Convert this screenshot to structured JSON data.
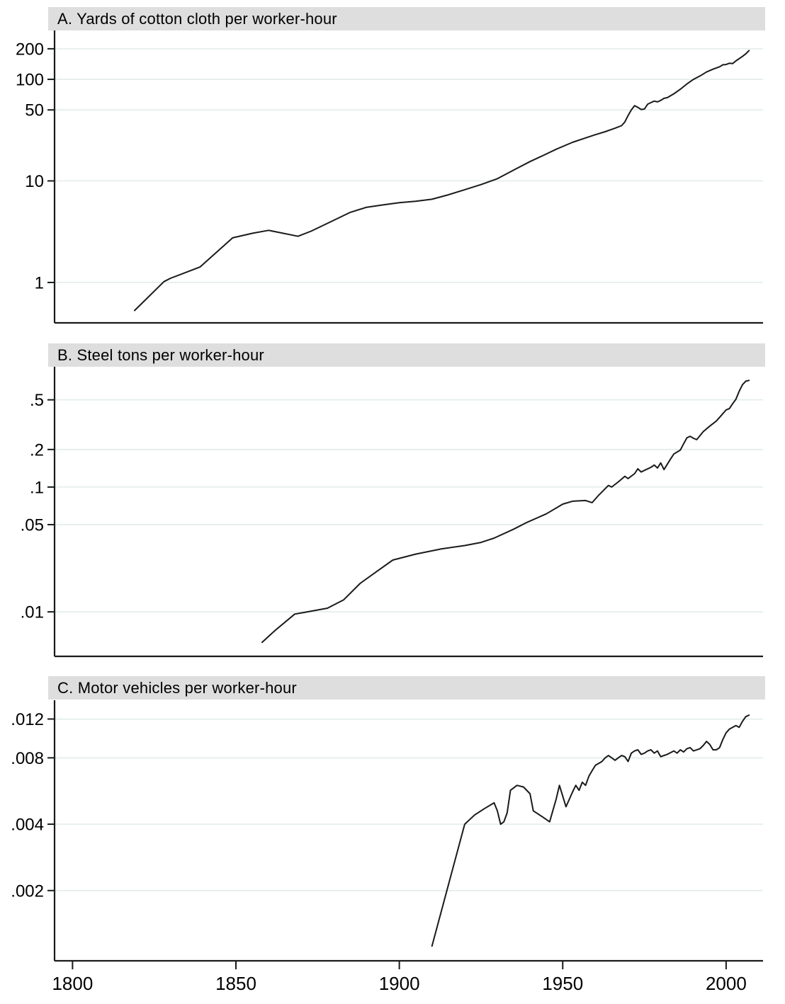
{
  "figure": {
    "type": "three stacked single-series line charts, shared x axis",
    "background": "#ffffff"
  },
  "colors": {
    "line": "#1a1a1a",
    "grid": "#e2ecec",
    "header_bg": "#dedede",
    "axis": "#1a1a1a",
    "text": "#000000"
  },
  "x_axis": {
    "xlim": [
      1794.5,
      2011.3
    ],
    "ticks": [
      {
        "v": 1800,
        "label": "1800"
      },
      {
        "v": 1850,
        "label": "1850"
      },
      {
        "v": 1900,
        "label": "1900"
      },
      {
        "v": 1950,
        "label": "1950"
      },
      {
        "v": 2000,
        "label": "2000"
      }
    ]
  },
  "chart_data": [
    {
      "type": "line",
      "title": "A. Yards of cotton cloth per worker-hour",
      "xlabel": "",
      "ylabel": "",
      "yscale": "log",
      "grid": "horizontal",
      "legend": "none",
      "ylim": [
        0.4,
        303
      ],
      "yticks": [
        {
          "v": 200,
          "label": "200"
        },
        {
          "v": 100,
          "label": "100"
        },
        {
          "v": 50,
          "label": "50"
        },
        {
          "v": 10,
          "label": "10"
        },
        {
          "v": 1,
          "label": "1"
        }
      ],
      "series": [
        [
          1819,
          0.53
        ],
        [
          1828,
          1.02
        ],
        [
          1830,
          1.1
        ],
        [
          1839,
          1.42
        ],
        [
          1849,
          2.75
        ],
        [
          1855,
          3.05
        ],
        [
          1860,
          3.26
        ],
        [
          1869,
          2.85
        ],
        [
          1873,
          3.2
        ],
        [
          1880,
          4.1
        ],
        [
          1885,
          4.9
        ],
        [
          1890,
          5.5
        ],
        [
          1895,
          5.8
        ],
        [
          1900,
          6.1
        ],
        [
          1905,
          6.3
        ],
        [
          1910,
          6.6
        ],
        [
          1915,
          7.3
        ],
        [
          1920,
          8.2
        ],
        [
          1925,
          9.2
        ],
        [
          1930,
          10.5
        ],
        [
          1936,
          13.3
        ],
        [
          1940,
          15.5
        ],
        [
          1944,
          17.8
        ],
        [
          1948,
          20.5
        ],
        [
          1953,
          24.0
        ],
        [
          1957,
          26.5
        ],
        [
          1960,
          28.5
        ],
        [
          1963,
          30.5
        ],
        [
          1966,
          33.0
        ],
        [
          1968,
          35.0
        ],
        [
          1969,
          38.0
        ],
        [
          1970,
          44.0
        ],
        [
          1971,
          50.0
        ],
        [
          1972,
          55.0
        ],
        [
          1973,
          53.0
        ],
        [
          1974,
          50.5
        ],
        [
          1975,
          51.0
        ],
        [
          1976,
          57.0
        ],
        [
          1977,
          59.0
        ],
        [
          1978,
          61.0
        ],
        [
          1979,
          60.0
        ],
        [
          1980,
          62.0
        ],
        [
          1981,
          65.0
        ],
        [
          1982,
          66.0
        ],
        [
          1984,
          72.0
        ],
        [
          1986,
          80.0
        ],
        [
          1988,
          90.0
        ],
        [
          1990,
          100.0
        ],
        [
          1992,
          108.0
        ],
        [
          1994,
          118.0
        ],
        [
          1996,
          126.0
        ],
        [
          1998,
          133.0
        ],
        [
          1999,
          139.0
        ],
        [
          2000,
          140.0
        ],
        [
          2001,
          144.0
        ],
        [
          2002,
          143.0
        ],
        [
          2003,
          152.0
        ],
        [
          2005,
          168.0
        ],
        [
          2006,
          178.0
        ],
        [
          2007,
          192.0
        ]
      ]
    },
    {
      "type": "line",
      "title": "B. Steel tons per worker-hour",
      "xlabel": "",
      "ylabel": "",
      "yscale": "log",
      "grid": "horizontal",
      "legend": "none",
      "ylim": [
        0.0044,
        0.92
      ],
      "yticks": [
        {
          "v": 0.5,
          "label": ".5"
        },
        {
          "v": 0.2,
          "label": ".2"
        },
        {
          "v": 0.1,
          "label": ".1"
        },
        {
          "v": 0.05,
          "label": ".05"
        },
        {
          "v": 0.01,
          "label": ".01"
        }
      ],
      "series": [
        [
          1858,
          0.0057
        ],
        [
          1862,
          0.0071
        ],
        [
          1868,
          0.0096
        ],
        [
          1871,
          0.0099
        ],
        [
          1878,
          0.0107
        ],
        [
          1883,
          0.0125
        ],
        [
          1888,
          0.0169
        ],
        [
          1893,
          0.021
        ],
        [
          1898,
          0.026
        ],
        [
          1905,
          0.029
        ],
        [
          1913,
          0.032
        ],
        [
          1920,
          0.034
        ],
        [
          1925,
          0.036
        ],
        [
          1929,
          0.039
        ],
        [
          1935,
          0.046
        ],
        [
          1939,
          0.052
        ],
        [
          1945,
          0.061
        ],
        [
          1950,
          0.073
        ],
        [
          1953,
          0.077
        ],
        [
          1957,
          0.078
        ],
        [
          1959,
          0.075
        ],
        [
          1961,
          0.086
        ],
        [
          1963,
          0.097
        ],
        [
          1964,
          0.103
        ],
        [
          1965,
          0.1
        ],
        [
          1967,
          0.11
        ],
        [
          1969,
          0.122
        ],
        [
          1970,
          0.117
        ],
        [
          1972,
          0.128
        ],
        [
          1973,
          0.14
        ],
        [
          1974,
          0.132
        ],
        [
          1975,
          0.136
        ],
        [
          1977,
          0.144
        ],
        [
          1978,
          0.15
        ],
        [
          1979,
          0.142
        ],
        [
          1980,
          0.156
        ],
        [
          1981,
          0.138
        ],
        [
          1983,
          0.168
        ],
        [
          1984,
          0.184
        ],
        [
          1986,
          0.198
        ],
        [
          1987,
          0.222
        ],
        [
          1988,
          0.248
        ],
        [
          1989,
          0.255
        ],
        [
          1990,
          0.246
        ],
        [
          1991,
          0.24
        ],
        [
          1993,
          0.278
        ],
        [
          1995,
          0.308
        ],
        [
          1997,
          0.338
        ],
        [
          1998,
          0.362
        ],
        [
          2000,
          0.415
        ],
        [
          2001,
          0.425
        ],
        [
          2002,
          0.465
        ],
        [
          2003,
          0.505
        ],
        [
          2004,
          0.585
        ],
        [
          2005,
          0.66
        ],
        [
          2006,
          0.705
        ],
        [
          2007,
          0.715
        ]
      ]
    },
    {
      "type": "line",
      "title": "C. Motor vehicles per worker-hour",
      "xlabel": "",
      "ylabel": "",
      "yscale": "log",
      "grid": "horizontal",
      "legend": "none",
      "ylim": [
        0.00096,
        0.0146
      ],
      "yticks": [
        {
          "v": 0.012,
          "label": ".012"
        },
        {
          "v": 0.008,
          "label": ".008"
        },
        {
          "v": 0.004,
          "label": ".004"
        },
        {
          "v": 0.002,
          "label": ".002"
        }
      ],
      "series": [
        [
          1910,
          0.00112
        ],
        [
          1920,
          0.004
        ],
        [
          1923,
          0.0044
        ],
        [
          1926,
          0.0047
        ],
        [
          1929,
          0.005
        ],
        [
          1930,
          0.0046
        ],
        [
          1931,
          0.004
        ],
        [
          1932,
          0.0041
        ],
        [
          1933,
          0.0045
        ],
        [
          1934,
          0.0057
        ],
        [
          1936,
          0.006
        ],
        [
          1938,
          0.0059
        ],
        [
          1940,
          0.0055
        ],
        [
          1941,
          0.0046
        ],
        [
          1944,
          0.0043
        ],
        [
          1946,
          0.0041
        ],
        [
          1948,
          0.0052
        ],
        [
          1949,
          0.006
        ],
        [
          1951,
          0.0048
        ],
        [
          1953,
          0.0056
        ],
        [
          1954,
          0.006
        ],
        [
          1955,
          0.0057
        ],
        [
          1956,
          0.0062
        ],
        [
          1957,
          0.006
        ],
        [
          1958,
          0.0066
        ],
        [
          1959,
          0.007
        ],
        [
          1960,
          0.0074
        ],
        [
          1962,
          0.0077
        ],
        [
          1963,
          0.008
        ],
        [
          1964,
          0.0082
        ],
        [
          1965,
          0.008
        ],
        [
          1966,
          0.0078
        ],
        [
          1967,
          0.008
        ],
        [
          1968,
          0.0082
        ],
        [
          1969,
          0.0081
        ],
        [
          1970,
          0.0077
        ],
        [
          1971,
          0.0084
        ],
        [
          1972,
          0.0086
        ],
        [
          1973,
          0.0087
        ],
        [
          1974,
          0.0083
        ],
        [
          1975,
          0.0084
        ],
        [
          1976,
          0.0086
        ],
        [
          1977,
          0.0087
        ],
        [
          1978,
          0.0084
        ],
        [
          1979,
          0.0086
        ],
        [
          1980,
          0.0081
        ],
        [
          1981,
          0.0082
        ],
        [
          1982,
          0.0083
        ],
        [
          1984,
          0.0086
        ],
        [
          1985,
          0.0084
        ],
        [
          1986,
          0.0087
        ],
        [
          1987,
          0.0085
        ],
        [
          1988,
          0.0088
        ],
        [
          1989,
          0.0089
        ],
        [
          1990,
          0.0086
        ],
        [
          1992,
          0.0088
        ],
        [
          1993,
          0.0091
        ],
        [
          1994,
          0.0095
        ],
        [
          1995,
          0.0092
        ],
        [
          1996,
          0.0087
        ],
        [
          1997,
          0.0087
        ],
        [
          1998,
          0.0089
        ],
        [
          1999,
          0.0097
        ],
        [
          2000,
          0.0104
        ],
        [
          2001,
          0.0108
        ],
        [
          2002,
          0.011
        ],
        [
          2003,
          0.0112
        ],
        [
          2004,
          0.011
        ],
        [
          2005,
          0.0117
        ],
        [
          2006,
          0.0123
        ],
        [
          2007,
          0.0125
        ]
      ]
    }
  ]
}
